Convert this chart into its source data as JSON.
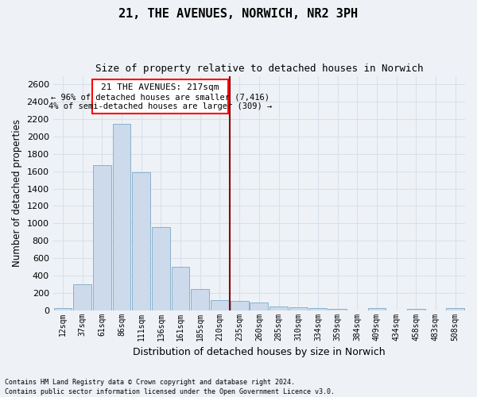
{
  "title": "21, THE AVENUES, NORWICH, NR2 3PH",
  "subtitle": "Size of property relative to detached houses in Norwich",
  "xlabel": "Distribution of detached houses by size in Norwich",
  "ylabel": "Number of detached properties",
  "footer_line1": "Contains HM Land Registry data © Crown copyright and database right 2024.",
  "footer_line2": "Contains public sector information licensed under the Open Government Licence v3.0.",
  "bar_labels": [
    "12sqm",
    "37sqm",
    "61sqm",
    "86sqm",
    "111sqm",
    "136sqm",
    "161sqm",
    "185sqm",
    "210sqm",
    "235sqm",
    "260sqm",
    "285sqm",
    "310sqm",
    "334sqm",
    "359sqm",
    "384sqm",
    "409sqm",
    "434sqm",
    "458sqm",
    "483sqm",
    "508sqm"
  ],
  "bar_values": [
    25,
    300,
    1670,
    2150,
    1590,
    960,
    500,
    245,
    120,
    110,
    90,
    40,
    35,
    20,
    15,
    0,
    25,
    0,
    18,
    0,
    25
  ],
  "bar_color": "#ccdaeb",
  "bar_edge_color": "#7aaac8",
  "annotation_title": "21 THE AVENUES: 217sqm",
  "annotation_line1": "← 96% of detached houses are smaller (7,416)",
  "annotation_line2": "4% of semi-detached houses are larger (309) →",
  "ylim": [
    0,
    2700
  ],
  "yticks": [
    0,
    200,
    400,
    600,
    800,
    1000,
    1200,
    1400,
    1600,
    1800,
    2000,
    2200,
    2400,
    2600
  ],
  "bg_color": "#eef2f7",
  "grid_color": "#d8e0ea",
  "title_fontsize": 11,
  "subtitle_fontsize": 9
}
